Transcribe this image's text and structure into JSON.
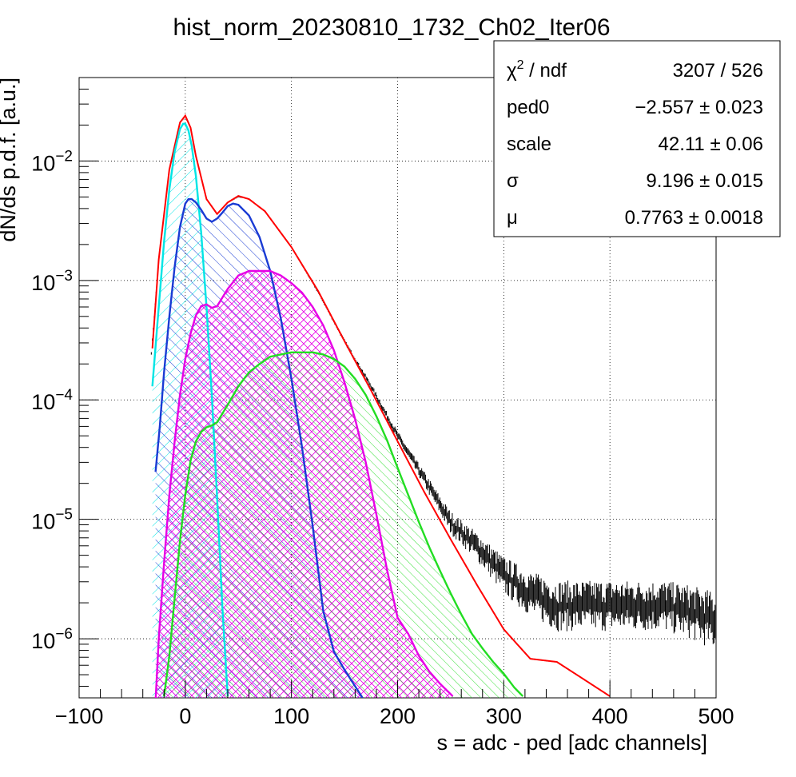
{
  "chart_data": {
    "type": "line",
    "title": "hist_norm_20230810_1732_Ch02_Iter06",
    "xlabel": "s = adc - ped [adc channels]",
    "ylabel": "dN/ds p.d.f. [a.u.]",
    "xlim": [
      -100,
      500
    ],
    "ylim": [
      3.2e-07,
      0.05
    ],
    "yscale": "log",
    "grid": true,
    "x_ticks": [
      "−100",
      "0",
      "100",
      "200",
      "300",
      "400",
      "500"
    ],
    "x_tick_values": [
      -100,
      0,
      100,
      200,
      300,
      400,
      500
    ],
    "y_ticks": [
      {
        "value": 0.01,
        "base": "10",
        "exp": "−2"
      },
      {
        "value": 0.001,
        "base": "10",
        "exp": "−3"
      },
      {
        "value": 0.0001,
        "base": "10",
        "exp": "−4"
      },
      {
        "value": 1e-05,
        "base": "10",
        "exp": "−5"
      },
      {
        "value": 1e-06,
        "base": "10",
        "exp": "−6"
      }
    ],
    "stats_box": {
      "position": "top-right",
      "rows": [
        {
          "label": "χ² / ndf",
          "value": "3207 / 526"
        },
        {
          "label": "ped0",
          "value": "−2.557 ± 0.023"
        },
        {
          "label": "scale",
          "value": "42.11 ± 0.06"
        },
        {
          "label": "σ",
          "value": "9.196 ± 0.015"
        },
        {
          "label": "μ",
          "value": "0.7763 ± 0.0018"
        }
      ]
    },
    "series": [
      {
        "role": "histogram",
        "color": "#000000",
        "x": [
          -32,
          -25,
          -15,
          -5,
          0,
          5,
          10,
          20,
          30,
          40,
          50,
          60,
          75,
          100,
          125,
          150,
          175,
          200,
          225,
          250,
          275,
          300,
          325,
          350,
          375,
          400,
          425,
          450,
          475,
          500
        ],
        "y": [
          0.00025,
          0.0015,
          0.0085,
          0.021,
          0.023,
          0.019,
          0.011,
          0.0048,
          0.0036,
          0.0045,
          0.005,
          0.0048,
          0.0038,
          0.0019,
          0.0008,
          0.00031,
          0.00013,
          5e-05,
          2.2e-05,
          9.5e-06,
          6e-06,
          3.5e-06,
          2.5e-06,
          2e-06,
          2e-06,
          2e-06,
          2e-06,
          2e-06,
          1.8e-06,
          1.5e-06
        ]
      },
      {
        "role": "total-fit",
        "color": "#ff0000",
        "x": [
          -31,
          -25,
          -15,
          -5,
          0,
          5,
          10,
          20,
          30,
          40,
          50,
          60,
          75,
          100,
          125,
          150,
          175,
          200,
          225,
          250,
          275,
          300,
          325,
          350,
          375,
          400
        ],
        "y": [
          0.00027,
          0.0015,
          0.0085,
          0.021,
          0.024,
          0.019,
          0.011,
          0.0048,
          0.0036,
          0.0045,
          0.0051,
          0.0048,
          0.0038,
          0.0019,
          0.00082,
          0.00031,
          0.00012,
          4.5e-05,
          1.7e-05,
          6.8e-06,
          2.8e-06,
          1.2e-06,
          6.8e-07,
          6.4e-07,
          4.6e-07,
          3.3e-07
        ]
      },
      {
        "role": "component-0pe",
        "color": "#00e5e5",
        "hatch": "left",
        "x": [
          -31,
          -25,
          -20,
          -15,
          -10,
          -5,
          -2,
          0,
          3,
          6,
          10,
          15,
          20,
          25,
          30,
          35,
          40
        ],
        "y": [
          0.00013,
          0.0006,
          0.0021,
          0.0058,
          0.012,
          0.0185,
          0.0205,
          0.0205,
          0.018,
          0.0135,
          0.0075,
          0.0025,
          0.0006,
          0.00011,
          1.5e-05,
          1.8e-06,
          3.3e-07
        ]
      },
      {
        "role": "component-1pe",
        "color": "#1a3bd4",
        "hatch": "right",
        "x": [
          -28,
          -24,
          -20,
          -15,
          -10,
          -5,
          0,
          3,
          6,
          10,
          15,
          20,
          25,
          30,
          35,
          40,
          45,
          50,
          60,
          70,
          80,
          90,
          100,
          110,
          120,
          130,
          140,
          150,
          160,
          167
        ],
        "y": [
          2.5e-05,
          6e-05,
          0.00017,
          0.0005,
          0.0013,
          0.0028,
          0.0044,
          0.0048,
          0.0048,
          0.0045,
          0.0039,
          0.0033,
          0.0031,
          0.0033,
          0.0037,
          0.0042,
          0.0044,
          0.0043,
          0.0035,
          0.0023,
          0.0012,
          0.00048,
          0.00015,
          4e-05,
          8.8e-06,
          1.7e-06,
          7.8e-07,
          5.5e-07,
          4e-07,
          3.2e-07
        ]
      },
      {
        "role": "component-2pe",
        "color": "#e600e6",
        "hatch": "cross",
        "x": [
          -28,
          -25,
          -20,
          -15,
          -10,
          -5,
          0,
          5,
          10,
          15,
          20,
          25,
          30,
          40,
          50,
          60,
          70,
          80,
          90,
          100,
          110,
          120,
          130,
          140,
          150,
          160,
          170,
          180,
          190,
          200,
          210,
          220,
          230,
          240,
          252
        ],
        "y": [
          3e-07,
          1e-06,
          4.3e-06,
          1.6e-05,
          4.5e-05,
          0.00011,
          0.00022,
          0.00036,
          0.00051,
          0.00061,
          0.00063,
          0.00059,
          0.00061,
          0.00085,
          0.0011,
          0.0012,
          0.0012,
          0.0012,
          0.0011,
          0.00095,
          0.00079,
          0.0006,
          0.00042,
          0.00026,
          0.00014,
          6.9e-05,
          3e-05,
          1.1e-05,
          3.8e-06,
          1.5e-06,
          1.1e-06,
          7.2e-07,
          5.3e-07,
          4.2e-07,
          3.3e-07
        ]
      },
      {
        "role": "component-3pe",
        "color": "#22dd22",
        "hatch": "right-sparse",
        "x": [
          -20,
          -15,
          -10,
          -5,
          0,
          5,
          10,
          15,
          20,
          25,
          30,
          40,
          50,
          60,
          70,
          80,
          90,
          100,
          110,
          120,
          130,
          140,
          150,
          160,
          170,
          180,
          190,
          200,
          210,
          220,
          230,
          240,
          250,
          260,
          270,
          280,
          290,
          300,
          310,
          318
        ],
        "y": [
          3.3e-07,
          7.2e-07,
          2.2e-06,
          6.6e-06,
          1.6e-05,
          3.1e-05,
          4.5e-05,
          5.4e-05,
          5.9e-05,
          6.1e-05,
          6.5e-05,
          9.1e-05,
          0.00013,
          0.00017,
          0.0002,
          0.00023,
          0.00024,
          0.00025,
          0.00025,
          0.00025,
          0.00024,
          0.00022,
          0.00019,
          0.00015,
          0.00011,
          7.3e-05,
          4.6e-05,
          2.7e-05,
          1.6e-05,
          9.5e-06,
          5.8e-06,
          3.7e-06,
          2.4e-06,
          1.6e-06,
          1.1e-06,
          8.3e-07,
          6.4e-07,
          5.1e-07,
          3.9e-07,
          3.3e-07
        ]
      }
    ]
  }
}
